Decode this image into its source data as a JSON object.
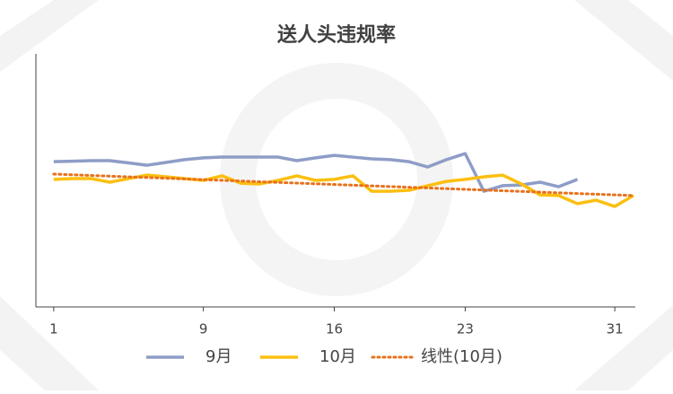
{
  "chart_data": {
    "type": "line",
    "title": "送人头违规率",
    "xlim": [
      0,
      32
    ],
    "xticks": [
      1,
      9,
      16,
      23,
      31
    ],
    "ylim": [
      0,
      100
    ],
    "grid": false,
    "legend": "bottom",
    "series": [
      {
        "name": "9月",
        "color": "#8e9dc7",
        "style": "solid",
        "x": [
          1,
          2,
          3,
          4,
          5,
          6,
          7,
          8,
          9,
          10,
          11,
          12,
          13,
          14,
          15,
          16,
          17,
          18,
          19,
          20,
          21,
          22,
          23,
          24,
          25,
          26,
          27,
          28,
          29
        ],
        "values": [
          57.4,
          57.6,
          57.8,
          57.8,
          56.9,
          56.0,
          57.1,
          58.2,
          58.9,
          59.2,
          59.2,
          59.2,
          59.2,
          57.8,
          58.9,
          59.9,
          59.2,
          58.5,
          58.2,
          57.4,
          55.3,
          58.2,
          60.6,
          45.7,
          47.9,
          48.2,
          49.3,
          47.5,
          50.4
        ]
      },
      {
        "name": "10月",
        "color": "#fbbf10",
        "style": "solid",
        "x": [
          1,
          2,
          3,
          4,
          5,
          6,
          7,
          8,
          9,
          10,
          11,
          12,
          13,
          14,
          15,
          16,
          17,
          18,
          19,
          20,
          21,
          22,
          23,
          24,
          25,
          26,
          27,
          28,
          29,
          30,
          31,
          32
        ],
        "values": [
          50.4,
          50.7,
          50.7,
          49.3,
          50.7,
          52.1,
          51.4,
          50.7,
          50.0,
          51.8,
          48.9,
          48.6,
          50.0,
          51.8,
          50.0,
          50.4,
          51.8,
          45.7,
          45.7,
          46.1,
          47.9,
          49.6,
          50.4,
          51.4,
          52.1,
          48.6,
          44.3,
          44.0,
          40.8,
          42.2,
          39.7,
          44.0
        ]
      },
      {
        "name": "线性(10月)",
        "color": "#e8711c",
        "style": "dotted",
        "x": [
          1,
          32
        ],
        "values": [
          52.5,
          44.0
        ]
      }
    ]
  }
}
